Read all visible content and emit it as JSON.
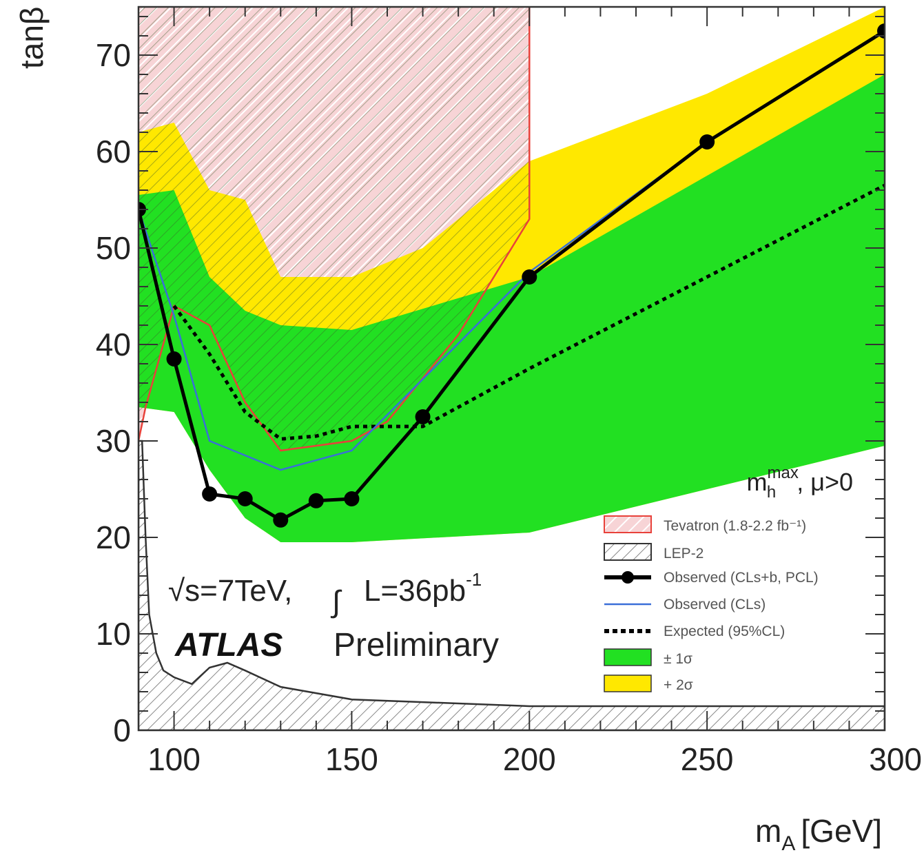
{
  "chart_data": {
    "type": "line",
    "xlabel": "m",
    "xlabel_sub": "A",
    "xlabel_unit": "[GeV]",
    "ylabel": "tanβ",
    "xlim": [
      90,
      300
    ],
    "ylim": [
      0,
      75
    ],
    "x_ticks": [
      100,
      150,
      200,
      250,
      300
    ],
    "y_ticks": [
      0,
      10,
      20,
      30,
      40,
      50,
      60,
      70
    ],
    "annotations": {
      "scenario_main": "m",
      "scenario_sub": "h",
      "scenario_sup": "max",
      "scenario_rest": ", μ>0",
      "energy": "√s=7TeV,",
      "integral": "∫",
      "lumi_main": "L=36pb",
      "lumi_sup": "-1",
      "atlas": "ATLAS",
      "preliminary": "Preliminary"
    },
    "legend": [
      {
        "key": "tevatron",
        "label": "Tevatron (1.8-2.2 fb⁻¹)"
      },
      {
        "key": "lep2",
        "label": "LEP-2"
      },
      {
        "key": "observed_clsb",
        "label": "Observed (CLs+b, PCL)"
      },
      {
        "key": "observed_cls",
        "label": "Observed (CLs)"
      },
      {
        "key": "expected",
        "label": "Expected (95%CL)"
      },
      {
        "key": "band1",
        "label": "± 1σ"
      },
      {
        "key": "band2",
        "label": "+ 2σ"
      }
    ],
    "colors": {
      "band1": "#22e022",
      "band2": "#ffe800",
      "tevatron": "#e8413a",
      "tevatron_fill": "#f7d4d6",
      "observed_cls": "#3a6fd8",
      "observed": "#000000",
      "lep": "#333333"
    },
    "series": [
      {
        "key": "observed_clsb",
        "name": "Observed (CLs+b, PCL)",
        "x": [
          90,
          100,
          110,
          120,
          130,
          140,
          150,
          170,
          200,
          250,
          300
        ],
        "y": [
          54,
          38.5,
          24.5,
          24,
          21.8,
          23.8,
          24,
          32.5,
          47,
          61,
          72.5
        ]
      },
      {
        "key": "observed_cls",
        "name": "Observed (CLs)",
        "x": [
          90,
          100,
          110,
          130,
          150,
          200,
          250,
          300
        ],
        "y": [
          54,
          43,
          30,
          27,
          29,
          47.5,
          61,
          72.5
        ]
      },
      {
        "key": "expected",
        "name": "Expected (95%CL)",
        "x": [
          100,
          110,
          120,
          130,
          140,
          150,
          160,
          170,
          200,
          250,
          300
        ],
        "y": [
          44,
          39,
          33,
          30.2,
          30.5,
          31.5,
          31.5,
          31.5,
          37.5,
          47,
          56.5
        ]
      },
      {
        "key": "band1_upper",
        "x": [
          90,
          100,
          110,
          120,
          130,
          150,
          200,
          300
        ],
        "y": [
          55.5,
          56,
          47,
          43.5,
          42,
          41.5,
          47,
          68
        ]
      },
      {
        "key": "band1_lower",
        "x": [
          90,
          100,
          110,
          120,
          130,
          150,
          200,
          300
        ],
        "y": [
          33.5,
          33,
          27,
          22,
          19.5,
          19.5,
          20.5,
          29.5
        ]
      },
      {
        "key": "band2_upper",
        "x": [
          90,
          100,
          110,
          120,
          130,
          150,
          170,
          200,
          250,
          300
        ],
        "y": [
          62,
          63,
          56,
          55,
          47,
          47,
          50,
          59,
          66,
          75
        ]
      },
      {
        "key": "tevatron_boundary",
        "name": "Tevatron (1.8-2.2 fb⁻¹)",
        "x": [
          90,
          92,
          100,
          110,
          120,
          130,
          150,
          160,
          180,
          200,
          200
        ],
        "y": [
          30,
          33.5,
          44,
          42,
          34,
          29,
          30,
          32,
          41,
          53,
          75
        ]
      },
      {
        "key": "lep2_boundary",
        "name": "LEP-2",
        "x": [
          91,
          92,
          93,
          95,
          97,
          100,
          105,
          110,
          115,
          120,
          130,
          150,
          200,
          300
        ],
        "y": [
          30,
          20,
          12,
          8,
          6.2,
          5.5,
          4.8,
          6.5,
          7,
          6.2,
          4.5,
          3.2,
          2.5,
          2.5
        ]
      }
    ]
  }
}
